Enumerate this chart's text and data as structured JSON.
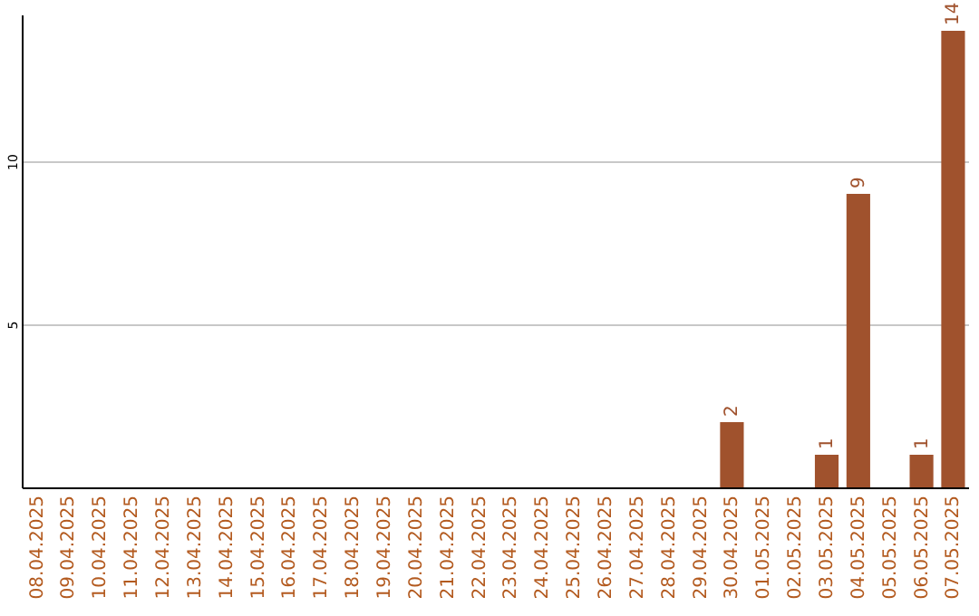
{
  "chart_data": {
    "type": "bar",
    "categories": [
      "08.04.2025",
      "09.04.2025",
      "10.04.2025",
      "11.04.2025",
      "12.04.2025",
      "13.04.2025",
      "14.04.2025",
      "15.04.2025",
      "16.04.2025",
      "17.04.2025",
      "18.04.2025",
      "19.04.2025",
      "20.04.2025",
      "21.04.2025",
      "22.04.2025",
      "23.04.2025",
      "24.04.2025",
      "25.04.2025",
      "26.04.2025",
      "27.04.2025",
      "28.04.2025",
      "29.04.2025",
      "30.04.2025",
      "01.05.2025",
      "02.05.2025",
      "03.05.2025",
      "04.05.2025",
      "05.05.2025",
      "06.05.2025",
      "07.05.2025"
    ],
    "values": [
      0,
      0,
      0,
      0,
      0,
      0,
      0,
      0,
      0,
      0,
      0,
      0,
      0,
      0,
      0,
      0,
      0,
      0,
      0,
      0,
      0,
      0,
      2,
      0,
      0,
      1,
      9,
      0,
      1,
      14
    ],
    "value_labels": [
      null,
      null,
      null,
      null,
      null,
      null,
      null,
      null,
      null,
      null,
      null,
      null,
      null,
      null,
      null,
      null,
      null,
      null,
      null,
      null,
      null,
      null,
      "2",
      null,
      null,
      "1",
      "9",
      null,
      "1",
      "14"
    ],
    "color": "#a0522d",
    "ylim": [
      0,
      14.5
    ],
    "yticks": [
      5,
      10
    ],
    "grid": "y"
  }
}
